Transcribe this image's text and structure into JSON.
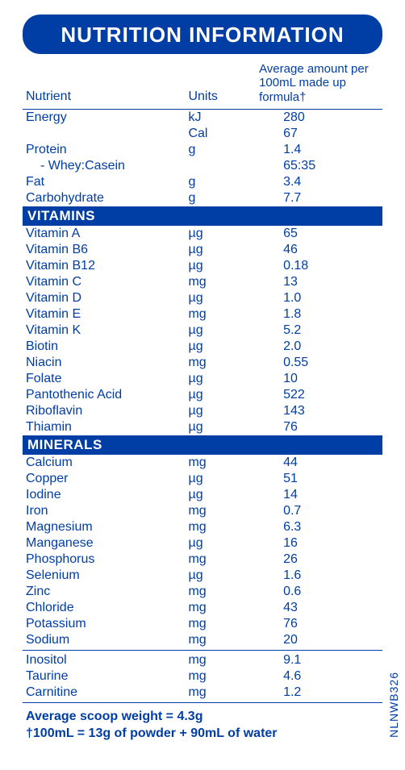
{
  "title": "NUTRITION INFORMATION",
  "columns": {
    "nutrient": "Nutrient",
    "units": "Units",
    "amount_line1": "Average amount per",
    "amount_line2": "100mL made up formula†"
  },
  "macros": [
    {
      "name": "Energy",
      "unit": "kJ",
      "value": "280"
    },
    {
      "name": "",
      "unit": "Cal",
      "value": "67"
    },
    {
      "name": "Protein",
      "unit": "g",
      "value": "1.4"
    },
    {
      "name": "- Whey:Casein",
      "unit": "",
      "value": "65:35",
      "indent": true
    },
    {
      "name": "Fat",
      "unit": "g",
      "value": "3.4"
    },
    {
      "name": "Carbohydrate",
      "unit": "g",
      "value": "7.7"
    }
  ],
  "sections": {
    "vitamins": {
      "label": "VITAMINS",
      "rows": [
        {
          "name": "Vitamin A",
          "unit": "µg",
          "value": "65"
        },
        {
          "name": "Vitamin B6",
          "unit": "µg",
          "value": "46"
        },
        {
          "name": "Vitamin B12",
          "unit": "µg",
          "value": "0.18"
        },
        {
          "name": "Vitamin C",
          "unit": "mg",
          "value": "13"
        },
        {
          "name": "Vitamin D",
          "unit": "µg",
          "value": "1.0"
        },
        {
          "name": "Vitamin E",
          "unit": "mg",
          "value": "1.8"
        },
        {
          "name": "Vitamin K",
          "unit": "µg",
          "value": "5.2"
        },
        {
          "name": "Biotin",
          "unit": "µg",
          "value": "2.0"
        },
        {
          "name": "Niacin",
          "unit": "mg",
          "value": "0.55"
        },
        {
          "name": "Folate",
          "unit": "µg",
          "value": "10"
        },
        {
          "name": "Pantothenic Acid",
          "unit": "µg",
          "value": "522"
        },
        {
          "name": "Riboflavin",
          "unit": "µg",
          "value": "143"
        },
        {
          "name": "Thiamin",
          "unit": "µg",
          "value": "76"
        }
      ]
    },
    "minerals": {
      "label": "MINERALS",
      "rows": [
        {
          "name": "Calcium",
          "unit": "mg",
          "value": "44"
        },
        {
          "name": "Copper",
          "unit": "µg",
          "value": "51"
        },
        {
          "name": "Iodine",
          "unit": "µg",
          "value": "14"
        },
        {
          "name": "Iron",
          "unit": "mg",
          "value": "0.7"
        },
        {
          "name": "Magnesium",
          "unit": "mg",
          "value": "6.3"
        },
        {
          "name": "Manganese",
          "unit": "µg",
          "value": "16"
        },
        {
          "name": "Phosphorus",
          "unit": "mg",
          "value": "26"
        },
        {
          "name": "Selenium",
          "unit": "µg",
          "value": "1.6"
        },
        {
          "name": "Zinc",
          "unit": "mg",
          "value": "0.6"
        },
        {
          "name": "Chloride",
          "unit": "mg",
          "value": "43"
        },
        {
          "name": "Potassium",
          "unit": "mg",
          "value": "76"
        },
        {
          "name": "Sodium",
          "unit": "mg",
          "value": "20"
        }
      ]
    }
  },
  "others": [
    {
      "name": "Inositol",
      "unit": "mg",
      "value": "9.1"
    },
    {
      "name": "Taurine",
      "unit": "mg",
      "value": "4.6"
    },
    {
      "name": "Carnitine",
      "unit": "mg",
      "value": "1.2"
    }
  ],
  "footnotes": {
    "line1": "Average scoop weight = 4.3g",
    "line2": "†100mL  = 13g of powder + 90mL of water"
  },
  "side_code": "NLNWB326",
  "colors": {
    "brand": "#003da5",
    "bg": "#ffffff"
  }
}
